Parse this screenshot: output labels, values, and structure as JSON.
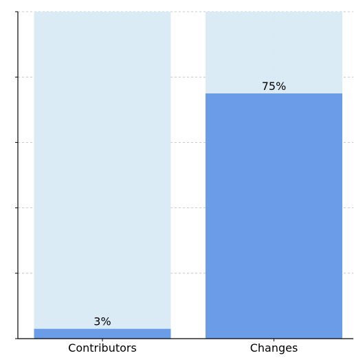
{
  "chart_data": {
    "type": "bar",
    "categories": [
      "Contributors",
      "Changes"
    ],
    "values": [
      3,
      75
    ],
    "value_labels": [
      "3%",
      "75%"
    ],
    "ylim": [
      0,
      100
    ],
    "yticks": [
      0,
      20,
      40,
      60,
      80,
      100
    ],
    "ytick_labels_visible": false,
    "grid": true,
    "title": "",
    "xlabel": "",
    "ylabel": "",
    "colors": {
      "bar": "#6a9ce8",
      "background_bar": "#d9eaf5",
      "grid": "#b9b9b9",
      "axis": "#000000"
    }
  }
}
